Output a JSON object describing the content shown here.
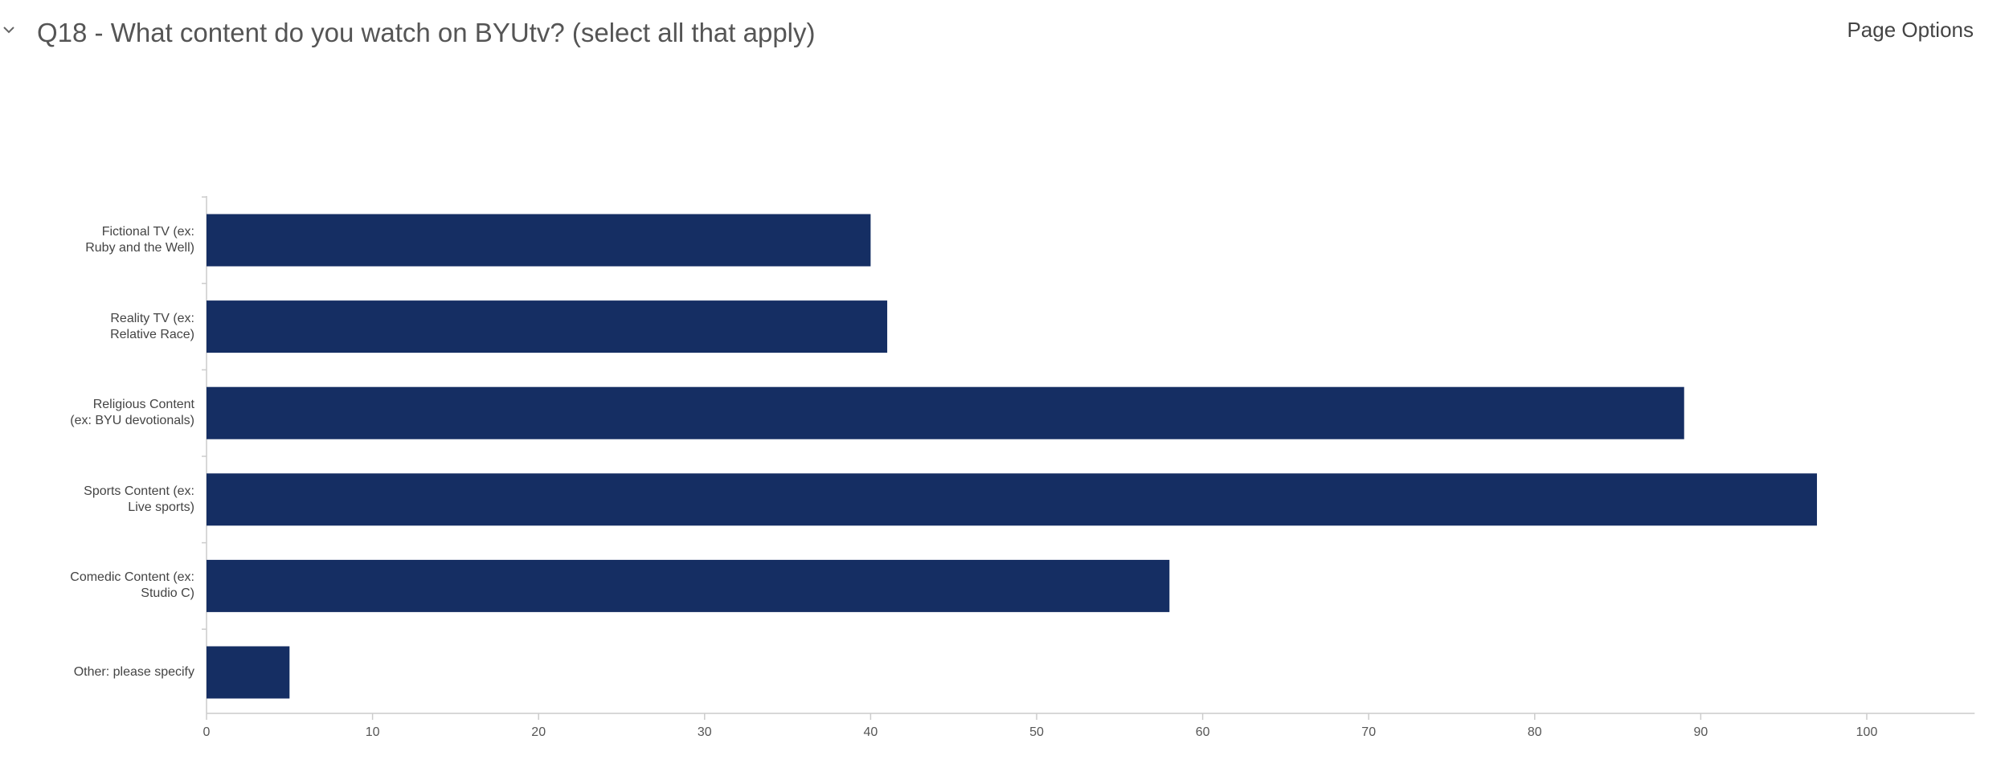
{
  "header": {
    "title": "Q18 - What content do you watch on BYUtv? (select all that apply)",
    "menu": "Page Options"
  },
  "chart_data": {
    "type": "bar",
    "orientation": "horizontal",
    "categories": [
      "Fictional TV (ex:\nRuby and the Well)",
      "Reality TV (ex:\nRelative Race)",
      "Religious Content\n(ex: BYU devotionals)",
      "Sports Content (ex:\nLive sports)",
      "Comedic Content (ex:\nStudio C)",
      "Other: please specify"
    ],
    "values": [
      40,
      41,
      89,
      97,
      58,
      5
    ],
    "color": "#152e63",
    "xlim": [
      0,
      106.5
    ],
    "xticks": [
      0,
      10,
      20,
      30,
      40,
      50,
      60,
      70,
      80,
      90,
      100
    ]
  }
}
